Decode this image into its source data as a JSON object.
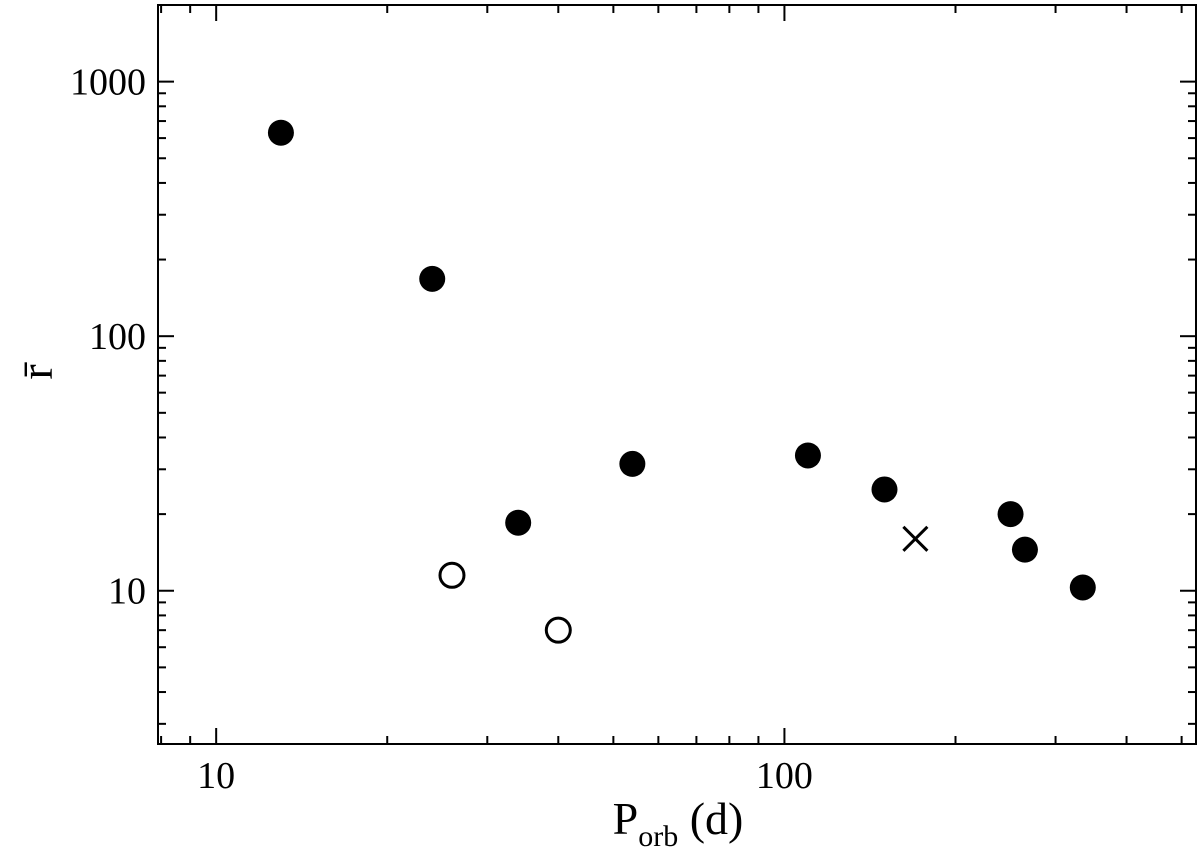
{
  "chart_data": {
    "type": "scatter",
    "title": "",
    "xlabel": "P",
    "xlabel_subscript": "orb",
    "xlabel_suffix": " (d)",
    "ylabel": "r̄",
    "xscale": "log",
    "yscale": "log",
    "xlim": [
      7.9,
      530
    ],
    "ylim": [
      2.5,
      2000
    ],
    "grid": false,
    "legend": "none",
    "x_major_ticks": [
      10,
      100
    ],
    "x_tick_labels": [
      "10",
      "100"
    ],
    "y_major_ticks": [
      10,
      100,
      1000
    ],
    "y_tick_labels": [
      "10",
      "100",
      "1000"
    ],
    "series": [
      {
        "marker": "filled-circle",
        "color": "#000000",
        "points": [
          {
            "x": 13,
            "y": 630
          },
          {
            "x": 24,
            "y": 168
          },
          {
            "x": 34,
            "y": 18.5
          },
          {
            "x": 54,
            "y": 31.5
          },
          {
            "x": 110,
            "y": 34
          },
          {
            "x": 150,
            "y": 25
          },
          {
            "x": 250,
            "y": 20
          },
          {
            "x": 265,
            "y": 14.5
          },
          {
            "x": 335,
            "y": 10.3
          }
        ]
      },
      {
        "marker": "open-circle",
        "color": "#000000",
        "points": [
          {
            "x": 26,
            "y": 11.5
          },
          {
            "x": 40,
            "y": 7
          }
        ]
      },
      {
        "marker": "cross",
        "color": "#000000",
        "points": [
          {
            "x": 170,
            "y": 16
          }
        ]
      }
    ]
  }
}
